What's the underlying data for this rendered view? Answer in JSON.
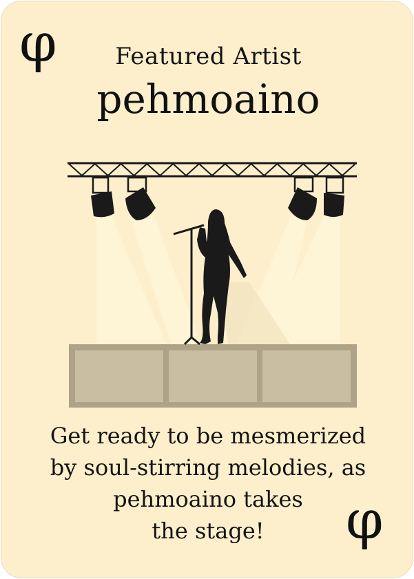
{
  "card": {
    "logo_glyph": "φ",
    "subtitle": "Featured Artist",
    "artist_name": "pehmoaino",
    "description_lines": [
      "Get ready to be mesmerized",
      "by soul-stirring melodies, as",
      "pehmoaino takes",
      "the stage!"
    ]
  },
  "colors": {
    "card_background": "#fdefcc",
    "stage": "#c8bda0",
    "stage_border": "#aea386",
    "light_beam": "#fff7dc",
    "silhouette": "#1a1a1a"
  },
  "icons": [
    "phi-logo-icon",
    "stage-truss-icon",
    "spotlight-icon",
    "singer-silhouette-icon",
    "microphone-icon"
  ]
}
